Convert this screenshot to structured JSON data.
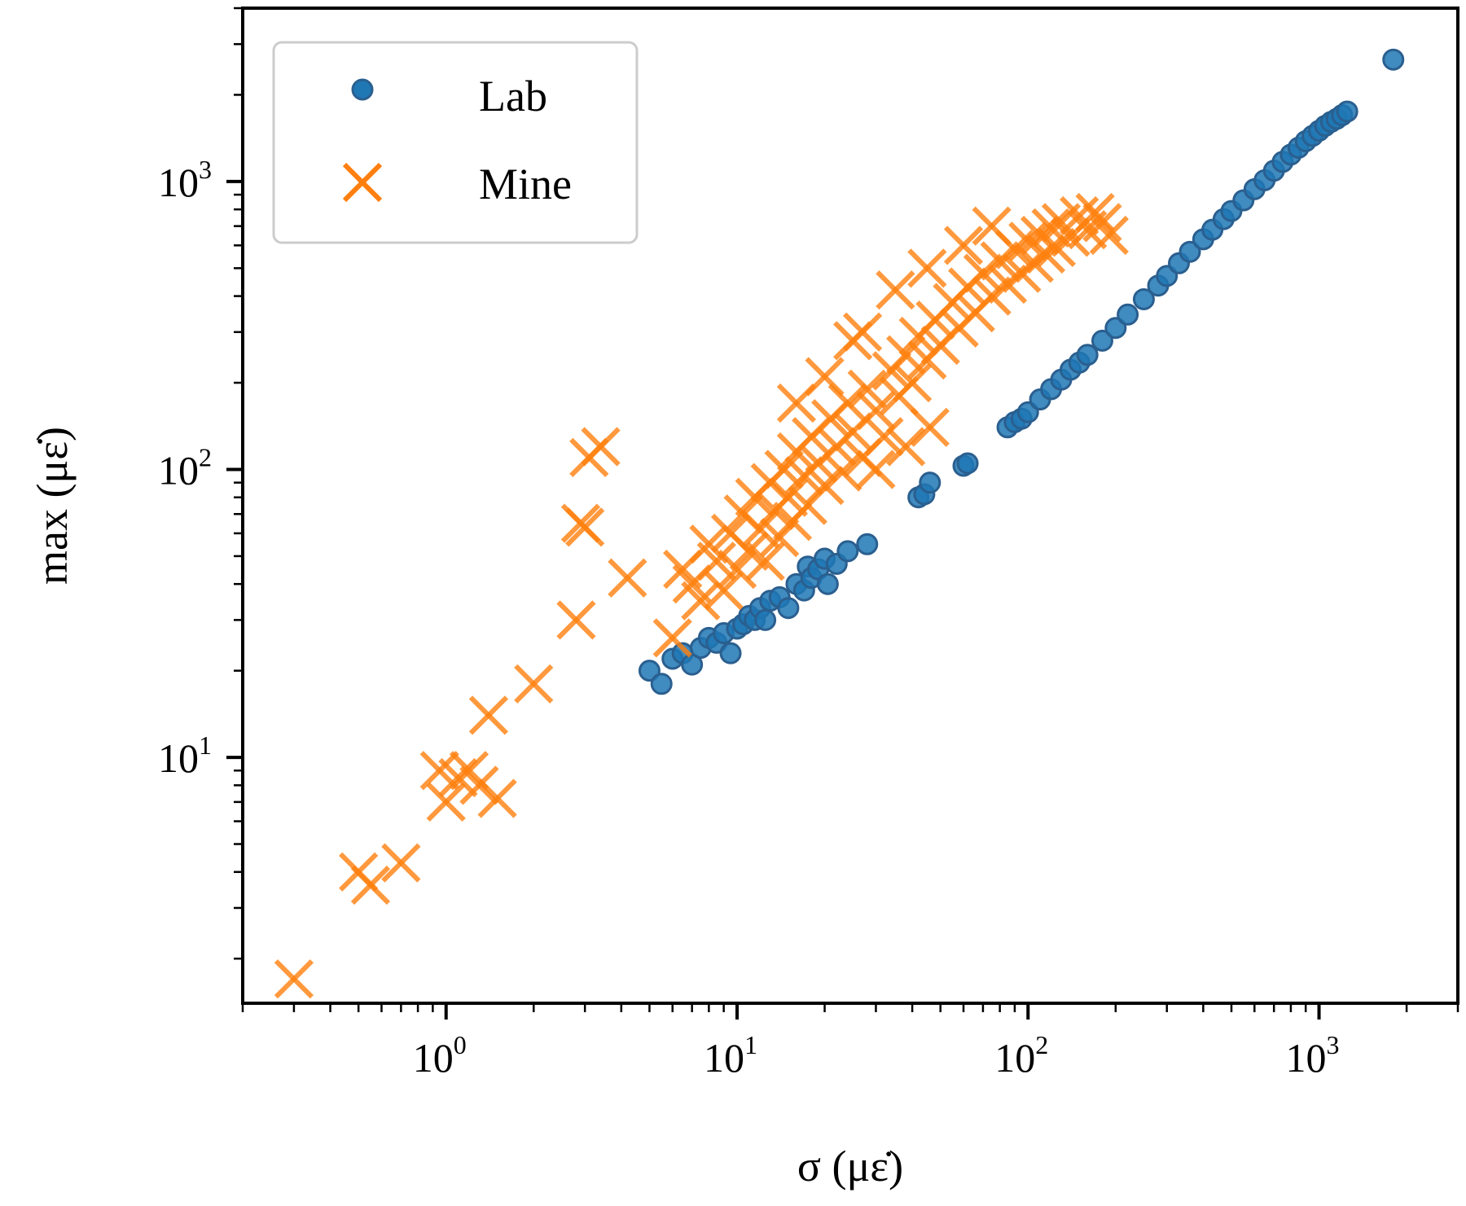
{
  "chart_data": {
    "type": "scatter",
    "xscale": "log",
    "yscale": "log",
    "xlim": [
      0.2,
      3000
    ],
    "ylim": [
      1.4,
      4000
    ],
    "xlabel": "σ (με̇)",
    "ylabel": "max (με̇)",
    "xticks": [
      1,
      10,
      100,
      1000
    ],
    "xtick_labels": [
      {
        "base": "10",
        "exp": "0"
      },
      {
        "base": "10",
        "exp": "1"
      },
      {
        "base": "10",
        "exp": "2"
      },
      {
        "base": "10",
        "exp": "3"
      }
    ],
    "yticks": [
      10,
      100,
      1000
    ],
    "ytick_labels": [
      {
        "base": "10",
        "exp": "1"
      },
      {
        "base": "10",
        "exp": "2"
      },
      {
        "base": "10",
        "exp": "3"
      }
    ],
    "grid": false,
    "legend": "top-left",
    "series": [
      {
        "name": "Lab",
        "marker": "circle",
        "color": "#1f77b4",
        "points": [
          [
            5.0,
            20
          ],
          [
            5.5,
            18
          ],
          [
            6.0,
            22
          ],
          [
            6.5,
            23
          ],
          [
            7.0,
            21
          ],
          [
            7.5,
            24
          ],
          [
            8.0,
            26
          ],
          [
            8.5,
            25
          ],
          [
            9.0,
            27
          ],
          [
            9.5,
            23
          ],
          [
            10.0,
            28
          ],
          [
            10.5,
            29
          ],
          [
            11.0,
            31
          ],
          [
            11.5,
            30
          ],
          [
            12.0,
            33
          ],
          [
            12.5,
            30
          ],
          [
            13.0,
            35
          ],
          [
            14.0,
            36
          ],
          [
            15.0,
            33
          ],
          [
            16.0,
            40
          ],
          [
            17.0,
            38
          ],
          [
            17.5,
            46
          ],
          [
            18.0,
            42
          ],
          [
            19.0,
            45
          ],
          [
            20.0,
            49
          ],
          [
            20.5,
            40
          ],
          [
            22.0,
            47
          ],
          [
            24.0,
            52
          ],
          [
            28.0,
            55
          ],
          [
            42.0,
            80
          ],
          [
            44.0,
            82
          ],
          [
            46.0,
            90
          ],
          [
            60.0,
            103
          ],
          [
            62.0,
            105
          ],
          [
            85.0,
            140
          ],
          [
            90.0,
            146
          ],
          [
            95.0,
            150
          ],
          [
            100.0,
            158
          ],
          [
            110.0,
            175
          ],
          [
            120.0,
            190
          ],
          [
            130.0,
            205
          ],
          [
            140.0,
            222
          ],
          [
            150.0,
            235
          ],
          [
            160.0,
            250
          ],
          [
            180.0,
            280
          ],
          [
            200.0,
            310
          ],
          [
            220.0,
            345
          ],
          [
            250.0,
            390
          ],
          [
            280.0,
            435
          ],
          [
            300.0,
            470
          ],
          [
            330.0,
            520
          ],
          [
            360.0,
            570
          ],
          [
            400.0,
            630
          ],
          [
            430.0,
            680
          ],
          [
            470.0,
            740
          ],
          [
            500.0,
            790
          ],
          [
            550.0,
            860
          ],
          [
            600.0,
            940
          ],
          [
            650.0,
            1010
          ],
          [
            700.0,
            1090
          ],
          [
            750.0,
            1170
          ],
          [
            800.0,
            1240
          ],
          [
            850.0,
            1310
          ],
          [
            900.0,
            1380
          ],
          [
            950.0,
            1440
          ],
          [
            1000.0,
            1500
          ],
          [
            1050.0,
            1560
          ],
          [
            1100.0,
            1610
          ],
          [
            1150.0,
            1650
          ],
          [
            1200.0,
            1700
          ],
          [
            1250.0,
            1750
          ],
          [
            1800.0,
            2650
          ]
        ]
      },
      {
        "name": "Mine",
        "marker": "x",
        "color": "#ff7f0e",
        "points": [
          [
            0.3,
            1.7
          ],
          [
            0.5,
            4.0
          ],
          [
            0.55,
            3.6
          ],
          [
            0.7,
            4.3
          ],
          [
            0.95,
            9.0
          ],
          [
            1.0,
            7.0
          ],
          [
            1.1,
            8.5
          ],
          [
            1.2,
            9.0
          ],
          [
            1.3,
            8.0
          ],
          [
            1.5,
            7.2
          ],
          [
            1.4,
            14.0
          ],
          [
            2.0,
            18.0
          ],
          [
            2.8,
            30.0
          ],
          [
            2.9,
            65.0
          ],
          [
            3.0,
            63.0
          ],
          [
            3.1,
            110.0
          ],
          [
            3.4,
            120.0
          ],
          [
            4.2,
            42.0
          ],
          [
            6.0,
            26.0
          ],
          [
            6.5,
            45.0
          ],
          [
            7.0,
            40.0
          ],
          [
            7.5,
            35.0
          ],
          [
            8.0,
            55.0
          ],
          [
            8.5,
            48.0
          ],
          [
            9.0,
            38.0
          ],
          [
            9.5,
            60.0
          ],
          [
            10.0,
            45.0
          ],
          [
            10.5,
            70.0
          ],
          [
            11.0,
            52.0
          ],
          [
            11.5,
            80.0
          ],
          [
            12.0,
            62.0
          ],
          [
            12.5,
            48.0
          ],
          [
            13.0,
            90.0
          ],
          [
            13.5,
            72.0
          ],
          [
            14.0,
            58.0
          ],
          [
            14.5,
            100.0
          ],
          [
            15.0,
            80.0
          ],
          [
            15.5,
            66.0
          ],
          [
            16.0,
            115.0
          ],
          [
            17.0,
            95.0
          ],
          [
            17.5,
            75.0
          ],
          [
            18.0,
            130.0
          ],
          [
            19.0,
            105.0
          ],
          [
            20.0,
            88.0
          ],
          [
            21.0,
            150.0
          ],
          [
            22.0,
            120.0
          ],
          [
            23.0,
            98.0
          ],
          [
            24.0,
            170.0
          ],
          [
            25.0,
            135.0
          ],
          [
            27.0,
            110.0
          ],
          [
            28.0,
            190.0
          ],
          [
            30.0,
            160.0
          ],
          [
            32.0,
            130.0
          ],
          [
            34.0,
            220.0
          ],
          [
            36.0,
            180.0
          ],
          [
            38.0,
            250.0
          ],
          [
            40.0,
            200.0
          ],
          [
            42.0,
            290.0
          ],
          [
            45.0,
            240.0
          ],
          [
            48.0,
            330.0
          ],
          [
            50.0,
            270.0
          ],
          [
            55.0,
            380.0
          ],
          [
            58.0,
            310.0
          ],
          [
            62.0,
            430.0
          ],
          [
            66.0,
            350.0
          ],
          [
            70.0,
            480.0
          ],
          [
            75.0,
            400.0
          ],
          [
            80.0,
            530.0
          ],
          [
            85.0,
            440.0
          ],
          [
            90.0,
            580.0
          ],
          [
            95.0,
            480.0
          ],
          [
            100.0,
            620.0
          ],
          [
            105.0,
            520.0
          ],
          [
            110.0,
            650.0
          ],
          [
            115.0,
            560.0
          ],
          [
            120.0,
            690.0
          ],
          [
            125.0,
            590.0
          ],
          [
            130.0,
            720.0
          ],
          [
            140.0,
            640.0
          ],
          [
            150.0,
            760.0
          ],
          [
            160.0,
            680.0
          ],
          [
            170.0,
            780.0
          ],
          [
            180.0,
            720.0
          ],
          [
            190.0,
            650.0
          ],
          [
            38.0,
            120.0
          ],
          [
            30.0,
            100.0
          ],
          [
            46.0,
            140.0
          ],
          [
            27.0,
            300.0
          ],
          [
            35.0,
            420.0
          ],
          [
            45.0,
            500.0
          ],
          [
            25.0,
            280.0
          ],
          [
            20.0,
            210.0
          ],
          [
            16.0,
            170.0
          ],
          [
            60.0,
            600.0
          ],
          [
            75.0,
            700.0
          ]
        ]
      }
    ]
  }
}
